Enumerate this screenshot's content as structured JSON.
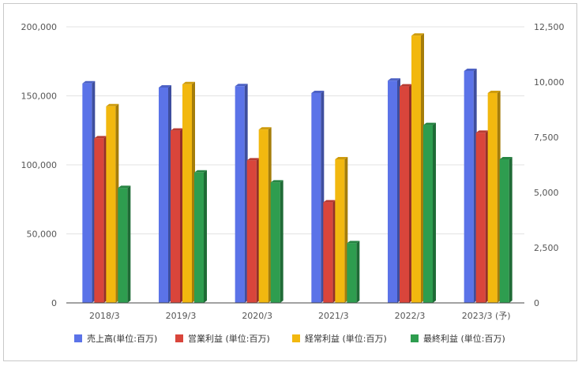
{
  "chart_data": {
    "type": "bar",
    "bar_style": "3d",
    "categories": [
      "2018/3",
      "2019/3",
      "2020/3",
      "2021/3",
      "2022/3",
      "2023/3 (予)"
    ],
    "left_axis": {
      "ylim": [
        0,
        200000
      ],
      "ticks": [
        "0",
        "50,000",
        "100,000",
        "150,000",
        "200,000"
      ]
    },
    "right_axis": {
      "ylim": [
        0,
        12500
      ],
      "ticks": [
        "0",
        "2,500",
        "5,000",
        "7,500",
        "10,000",
        "12,500"
      ]
    },
    "grid": true,
    "legend_position": "bottom",
    "series": [
      {
        "name": "売上高(単位:百万)",
        "axis": "left",
        "color": "#5b73e8",
        "values": [
          159000,
          156000,
          157000,
          152000,
          161000,
          168000
        ]
      },
      {
        "name": "営業利益 (単位:百万)",
        "axis": "right",
        "color": "#d9453b",
        "values": [
          7450,
          7800,
          6450,
          4550,
          9800,
          7700
        ]
      },
      {
        "name": "経常利益 (単位:百万)",
        "axis": "right",
        "color": "#f2b80f",
        "values": [
          8900,
          9900,
          7850,
          6500,
          12100,
          9500
        ]
      },
      {
        "name": "最終利益 (単位:百万)",
        "axis": "right",
        "color": "#2e9d4f",
        "values": [
          5200,
          5900,
          5450,
          2700,
          8050,
          6500
        ]
      }
    ]
  }
}
